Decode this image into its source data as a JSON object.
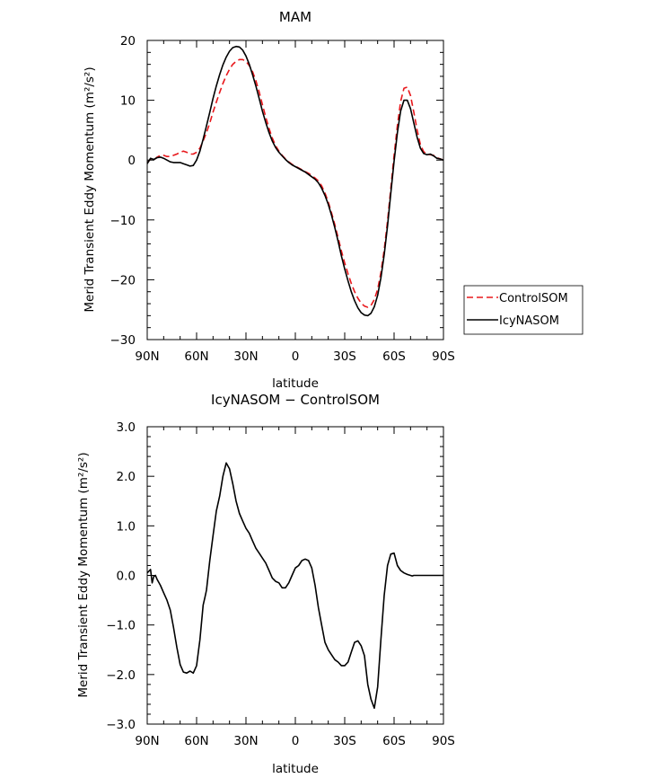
{
  "chart_data": [
    {
      "type": "line",
      "title": "MAM",
      "xlabel": "latitude",
      "ylabel": "Merid Transient Eddy Momentum (m²/s²)",
      "xlim": [
        90,
        -90
      ],
      "ylim": [
        -30,
        20
      ],
      "x_ticks": [
        90,
        60,
        30,
        0,
        -30,
        -60,
        -90
      ],
      "x_tick_labels": [
        "90N",
        "60N",
        "30N",
        "0",
        "30S",
        "60S",
        "90S"
      ],
      "y_ticks": [
        -30,
        -20,
        -10,
        0,
        10,
        20
      ],
      "y_tick_labels": [
        "−30",
        "−20",
        "−10",
        "0",
        "10",
        "20"
      ],
      "legend": {
        "placement": "outside-right",
        "entries": [
          "ControlSOM",
          "IcyNASOM"
        ]
      },
      "grid": false,
      "series": [
        {
          "name": "ControlSOM",
          "color": "#e8181c",
          "dash": true,
          "x": [
            90,
            88,
            86,
            84,
            82,
            80,
            78,
            76,
            74,
            72,
            70,
            68,
            66,
            64,
            62,
            60,
            58,
            56,
            54,
            52,
            50,
            48,
            46,
            44,
            42,
            40,
            38,
            36,
            34,
            32,
            30,
            28,
            26,
            24,
            22,
            20,
            18,
            16,
            14,
            12,
            10,
            8,
            6,
            4,
            2,
            0,
            -2,
            -4,
            -6,
            -8,
            -10,
            -12,
            -14,
            -16,
            -18,
            -20,
            -22,
            -24,
            -26,
            -28,
            -30,
            -32,
            -34,
            -36,
            -38,
            -40,
            -42,
            -44,
            -46,
            -48,
            -50,
            -52,
            -54,
            -56,
            -58,
            -60,
            -62,
            -64,
            -66,
            -68,
            -70,
            -72,
            -74,
            -76,
            -78,
            -80,
            -82,
            -84,
            -86,
            -88,
            -90
          ],
          "values": [
            -0.5,
            0.2,
            0.0,
            0.5,
            0.8,
            0.8,
            0.6,
            0.6,
            0.8,
            1.0,
            1.3,
            1.5,
            1.3,
            1.0,
            1.0,
            1.3,
            2.0,
            3.2,
            4.6,
            6.2,
            8.0,
            9.7,
            11.3,
            12.8,
            14.1,
            15.2,
            16.0,
            16.5,
            16.8,
            16.8,
            16.5,
            15.8,
            14.8,
            13.3,
            11.4,
            9.3,
            7.2,
            5.3,
            3.7,
            2.4,
            1.5,
            0.8,
            0.2,
            -0.3,
            -0.7,
            -1.0,
            -1.3,
            -1.6,
            -1.9,
            -2.2,
            -2.6,
            -3.0,
            -3.5,
            -4.3,
            -5.5,
            -7.0,
            -8.8,
            -10.8,
            -13.0,
            -15.2,
            -17.2,
            -19.0,
            -20.6,
            -22.0,
            -23.1,
            -23.9,
            -24.4,
            -24.6,
            -24.3,
            -23.3,
            -21.6,
            -18.8,
            -15.0,
            -10.2,
            -4.8,
            0.8,
            5.8,
            9.8,
            12.0,
            12.2,
            10.8,
            8.0,
            5.0,
            2.6,
            1.4,
            1.0,
            0.9,
            0.8,
            0.4,
            0.2,
            0.0
          ]
        },
        {
          "name": "IcyNASOM",
          "color": "#000000",
          "dash": false,
          "x": [
            90,
            88,
            86,
            84,
            82,
            80,
            78,
            76,
            74,
            72,
            70,
            68,
            66,
            64,
            62,
            60,
            58,
            56,
            54,
            52,
            50,
            48,
            46,
            44,
            42,
            40,
            38,
            36,
            34,
            32,
            30,
            28,
            26,
            24,
            22,
            20,
            18,
            16,
            14,
            12,
            10,
            8,
            6,
            4,
            2,
            0,
            -2,
            -4,
            -6,
            -8,
            -10,
            -12,
            -14,
            -16,
            -18,
            -20,
            -22,
            -24,
            -26,
            -28,
            -30,
            -32,
            -34,
            -36,
            -38,
            -40,
            -42,
            -44,
            -46,
            -48,
            -50,
            -52,
            -54,
            -56,
            -58,
            -60,
            -62,
            -64,
            -66,
            -68,
            -70,
            -72,
            -74,
            -76,
            -78,
            -80,
            -82,
            -84,
            -86,
            -88,
            -90
          ],
          "values": [
            -0.6,
            0.3,
            0.1,
            0.4,
            0.5,
            0.3,
            0.0,
            -0.3,
            -0.4,
            -0.4,
            -0.4,
            -0.6,
            -0.8,
            -1.0,
            -0.9,
            0.0,
            1.5,
            3.5,
            5.7,
            8.0,
            10.3,
            12.4,
            14.3,
            15.9,
            17.2,
            18.2,
            18.8,
            19.0,
            18.9,
            18.4,
            17.4,
            16.0,
            14.3,
            12.4,
            10.3,
            8.2,
            6.3,
            4.6,
            3.2,
            2.1,
            1.3,
            0.7,
            0.1,
            -0.4,
            -0.8,
            -1.1,
            -1.4,
            -1.7,
            -2.0,
            -2.4,
            -2.8,
            -3.2,
            -3.8,
            -4.7,
            -5.9,
            -7.4,
            -9.2,
            -11.3,
            -13.6,
            -16.0,
            -18.2,
            -20.2,
            -22.0,
            -23.5,
            -24.7,
            -25.5,
            -25.9,
            -26.0,
            -25.6,
            -24.5,
            -22.6,
            -19.7,
            -15.8,
            -11.0,
            -5.6,
            -0.2,
            4.6,
            8.2,
            10.0,
            10.0,
            8.6,
            6.2,
            3.8,
            2.0,
            1.1,
            0.9,
            1.0,
            0.7,
            0.3,
            0.2,
            0.0
          ]
        }
      ]
    },
    {
      "type": "line",
      "title": "IcyNASOM − ControlSOM",
      "xlabel": "latitude",
      "ylabel": "Merid Transient Eddy Momentum (m²/s²)",
      "xlim": [
        90,
        -90
      ],
      "ylim": [
        -3.0,
        3.0
      ],
      "x_ticks": [
        90,
        60,
        30,
        0,
        -30,
        -60,
        -90
      ],
      "x_tick_labels": [
        "90N",
        "60N",
        "30N",
        "0",
        "30S",
        "60S",
        "90S"
      ],
      "y_ticks": [
        -3.0,
        -2.0,
        -1.0,
        0.0,
        1.0,
        2.0,
        3.0
      ],
      "y_tick_labels": [
        "−3.0",
        "−2.0",
        "−1.0",
        "0.0",
        "1.0",
        "2.0",
        "3.0"
      ],
      "grid": false,
      "series": [
        {
          "name": "",
          "color": "#000000",
          "dash": false,
          "x": [
            90,
            88,
            87,
            86,
            85,
            84,
            82,
            80,
            78,
            76,
            74,
            72,
            70,
            68,
            66,
            64,
            62,
            60,
            58,
            56,
            55,
            54,
            52,
            50,
            48,
            46,
            44,
            42,
            40,
            38,
            36,
            34,
            32,
            30,
            28,
            26,
            24,
            22,
            20,
            18,
            16,
            14,
            12,
            10,
            8,
            6,
            4,
            2,
            0,
            -2,
            -4,
            -6,
            -8,
            -10,
            -12,
            -14,
            -16,
            -18,
            -20,
            -22,
            -24,
            -26,
            -28,
            -30,
            -32,
            -34,
            -36,
            -38,
            -40,
            -42,
            -44,
            -46,
            -48,
            -50,
            -52,
            -54,
            -56,
            -58,
            -60,
            -62,
            -64,
            -66,
            -68,
            -70,
            -71,
            -72,
            -74,
            -76,
            -78,
            -80,
            -82,
            -84,
            -86,
            -88,
            -90
          ],
          "values": [
            0.05,
            0.12,
            -0.15,
            -0.02,
            0.0,
            -0.08,
            -0.2,
            -0.35,
            -0.5,
            -0.7,
            -1.05,
            -1.45,
            -1.8,
            -1.95,
            -1.97,
            -1.93,
            -1.97,
            -1.82,
            -1.3,
            -0.6,
            -0.45,
            -0.3,
            0.3,
            0.8,
            1.3,
            1.6,
            2.0,
            2.27,
            2.15,
            1.85,
            1.5,
            1.25,
            1.1,
            0.95,
            0.85,
            0.7,
            0.55,
            0.45,
            0.35,
            0.25,
            0.1,
            -0.05,
            -0.12,
            -0.15,
            -0.25,
            -0.25,
            -0.15,
            0.0,
            0.15,
            0.2,
            0.3,
            0.33,
            0.3,
            0.15,
            -0.2,
            -0.65,
            -1.0,
            -1.35,
            -1.5,
            -1.6,
            -1.7,
            -1.75,
            -1.82,
            -1.82,
            -1.75,
            -1.55,
            -1.35,
            -1.32,
            -1.42,
            -1.62,
            -2.2,
            -2.5,
            -2.68,
            -2.25,
            -1.3,
            -0.4,
            0.2,
            0.43,
            0.45,
            0.2,
            0.1,
            0.05,
            0.02,
            0.0,
            -0.01,
            0.0,
            0.0,
            0.0,
            0.0,
            0.0,
            0.0,
            0.0,
            0.0,
            0.0,
            0.0
          ]
        }
      ]
    }
  ]
}
